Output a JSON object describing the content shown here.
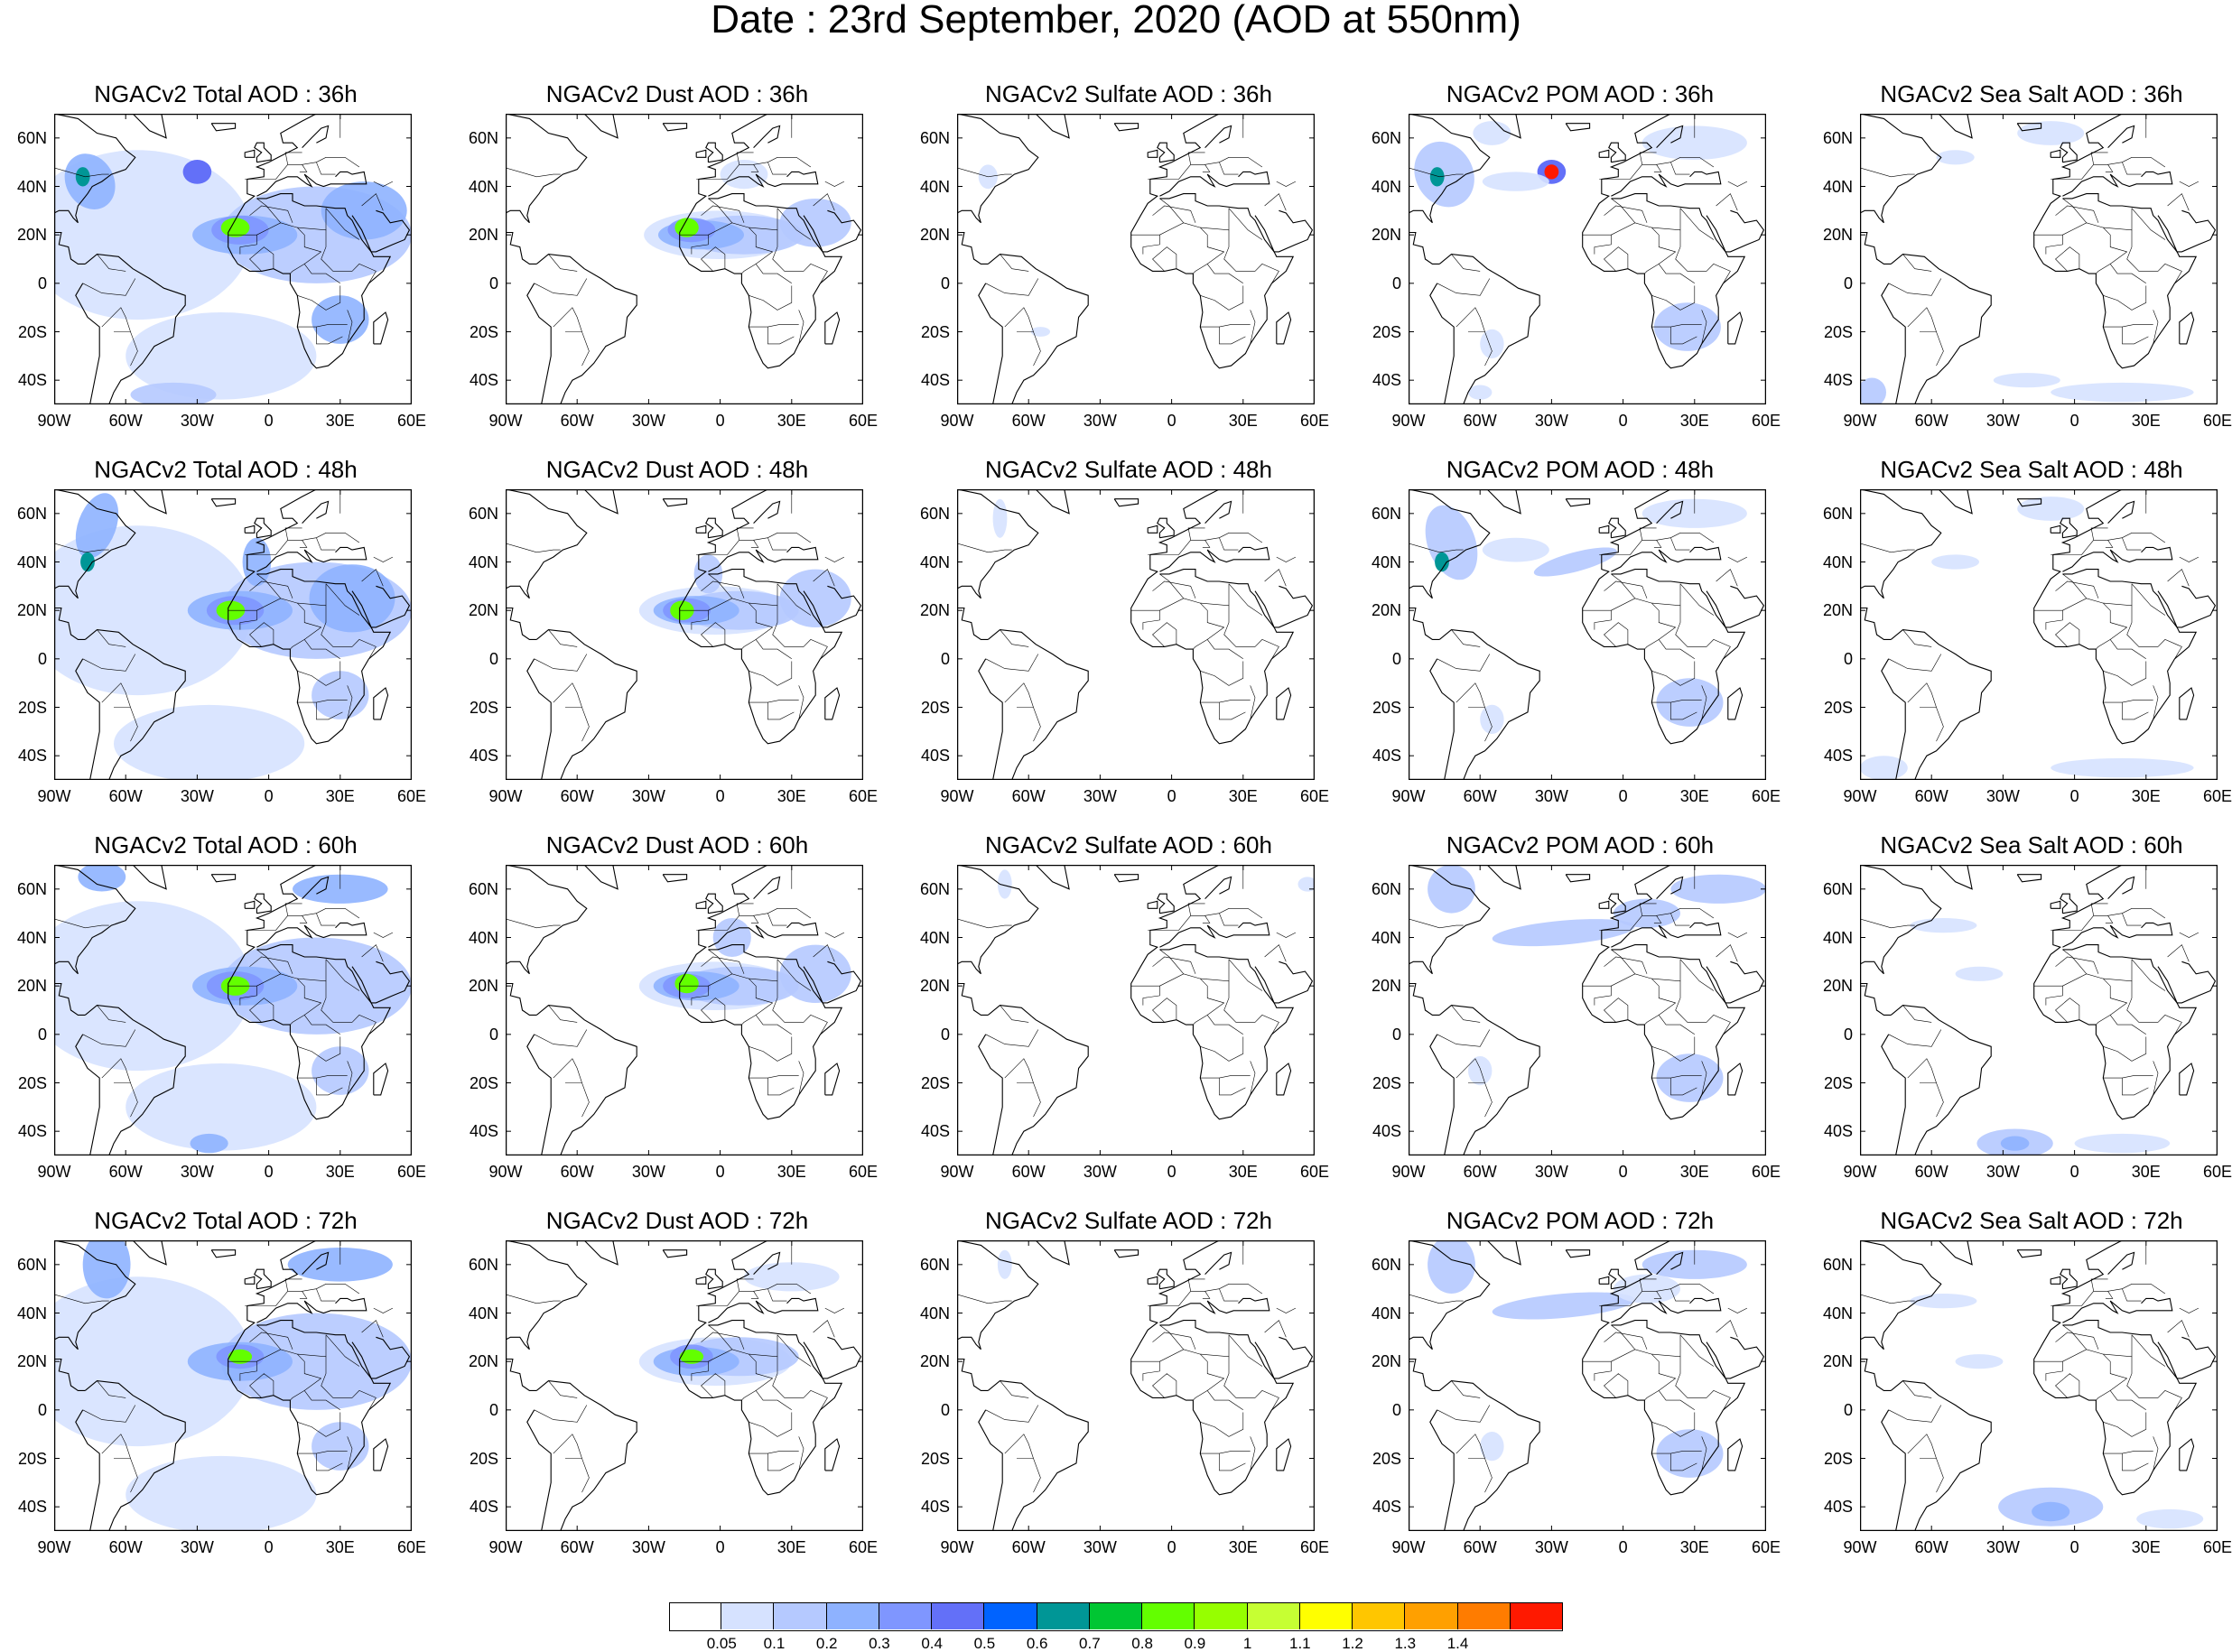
{
  "title": "Date : 23rd  September, 2020 (AOD at 550nm)",
  "panels": [
    {
      "title": "NGACv2 Total AOD : 36h",
      "species": "total",
      "hour": 36
    },
    {
      "title": "NGACv2 Dust AOD : 36h",
      "species": "dust",
      "hour": 36
    },
    {
      "title": "NGACv2 Sulfate AOD : 36h",
      "species": "sulfate",
      "hour": 36
    },
    {
      "title": "NGACv2 POM AOD : 36h",
      "species": "pom",
      "hour": 36
    },
    {
      "title": "NGACv2 Sea Salt AOD : 36h",
      "species": "seasalt",
      "hour": 36
    },
    {
      "title": "NGACv2 Total AOD : 48h",
      "species": "total",
      "hour": 48
    },
    {
      "title": "NGACv2 Dust AOD : 48h",
      "species": "dust",
      "hour": 48
    },
    {
      "title": "NGACv2 Sulfate AOD : 48h",
      "species": "sulfate",
      "hour": 48
    },
    {
      "title": "NGACv2 POM AOD : 48h",
      "species": "pom",
      "hour": 48
    },
    {
      "title": "NGACv2 Sea Salt AOD : 48h",
      "species": "seasalt",
      "hour": 48
    },
    {
      "title": "NGACv2 Total AOD : 60h",
      "species": "total",
      "hour": 60
    },
    {
      "title": "NGACv2 Dust AOD : 60h",
      "species": "dust",
      "hour": 60
    },
    {
      "title": "NGACv2 Sulfate AOD : 60h",
      "species": "sulfate",
      "hour": 60
    },
    {
      "title": "NGACv2 POM AOD : 60h",
      "species": "pom",
      "hour": 60
    },
    {
      "title": "NGACv2 Sea Salt AOD : 60h",
      "species": "seasalt",
      "hour": 60
    },
    {
      "title": "NGACv2 Total AOD : 72h",
      "species": "total",
      "hour": 72
    },
    {
      "title": "NGACv2 Dust AOD : 72h",
      "species": "dust",
      "hour": 72
    },
    {
      "title": "NGACv2 Sulfate AOD : 72h",
      "species": "sulfate",
      "hour": 72
    },
    {
      "title": "NGACv2 POM AOD : 72h",
      "species": "pom",
      "hour": 72
    },
    {
      "title": "NGACv2 Sea Salt  AOD : 72h",
      "species": "seasalt",
      "hour": 72
    }
  ],
  "map_extent": {
    "lon": [
      -90,
      60
    ],
    "lat": [
      -50,
      70
    ]
  },
  "lat_ticks": [
    {
      "value": 60,
      "label": "60N"
    },
    {
      "value": 40,
      "label": "40N"
    },
    {
      "value": 20,
      "label": "20N"
    },
    {
      "value": 0,
      "label": "0"
    },
    {
      "value": -20,
      "label": "20S"
    },
    {
      "value": -40,
      "label": "40S"
    }
  ],
  "lon_ticks": [
    {
      "value": -90,
      "label": "90W"
    },
    {
      "value": -60,
      "label": "60W"
    },
    {
      "value": -30,
      "label": "30W"
    },
    {
      "value": 0,
      "label": "0"
    },
    {
      "value": 30,
      "label": "30E"
    },
    {
      "value": 60,
      "label": "60E"
    }
  ],
  "colorbar": {
    "colors": [
      "#ffffff",
      "#d6e2ff",
      "#b5c9ff",
      "#8eb2ff",
      "#7f96ff",
      "#6370f8",
      "#0063ff",
      "#009696",
      "#00c633",
      "#63ff00",
      "#96ff00",
      "#c6ff33",
      "#ffff00",
      "#ffc600",
      "#ffa000",
      "#ff7c00",
      "#ff1900"
    ],
    "labels": [
      "0.05",
      "0.1",
      "0.2",
      "0.3",
      "0.4",
      "0.5",
      "0.6",
      "0.7",
      "0.8",
      "0.9",
      "1",
      "1.1",
      "1.2",
      "1.3",
      "1.4"
    ]
  }
}
